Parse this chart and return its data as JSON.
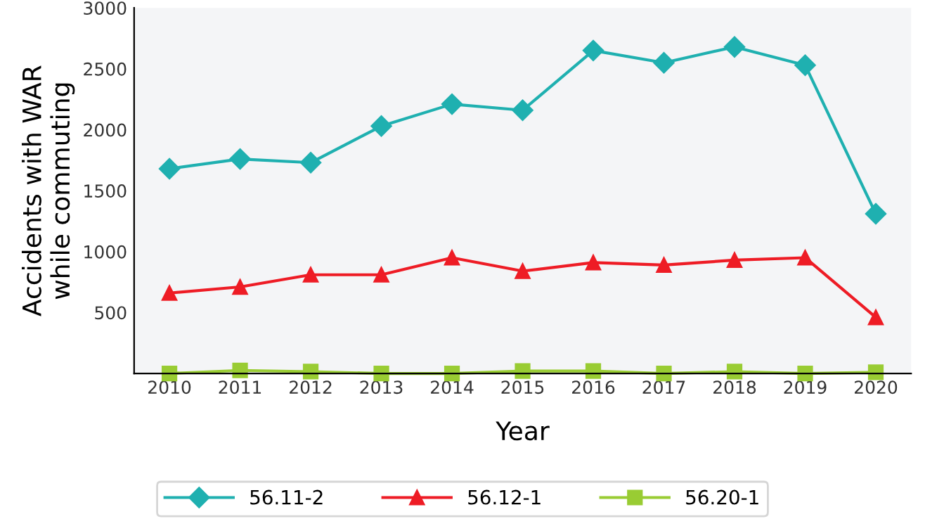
{
  "chart_data": {
    "type": "line",
    "xlabel": "Year",
    "ylabel": "Accidents with WAR\nwhile commuting",
    "categories": [
      "2010",
      "2011",
      "2012",
      "2013",
      "2014",
      "2015",
      "2016",
      "2017",
      "2018",
      "2019",
      "2020"
    ],
    "series": [
      {
        "name": "56.11-2",
        "color": "#1fb0b0",
        "marker": "diamond",
        "values": [
          1680,
          1760,
          1730,
          2030,
          2210,
          2160,
          2650,
          2550,
          2680,
          2530,
          1310
        ]
      },
      {
        "name": "56.12-1",
        "color": "#ee1c25",
        "marker": "triangle",
        "values": [
          660,
          710,
          810,
          810,
          950,
          840,
          910,
          890,
          930,
          950,
          460
        ]
      },
      {
        "name": "56.20-1",
        "color": "#99cc33",
        "marker": "square",
        "values": [
          0,
          25,
          15,
          0,
          0,
          20,
          20,
          0,
          15,
          0,
          10
        ]
      }
    ],
    "ylim": [
      0,
      3000
    ],
    "yticks": [
      500,
      1000,
      1500,
      2000,
      2500,
      3000
    ],
    "grid": false,
    "legend": "bottom"
  }
}
